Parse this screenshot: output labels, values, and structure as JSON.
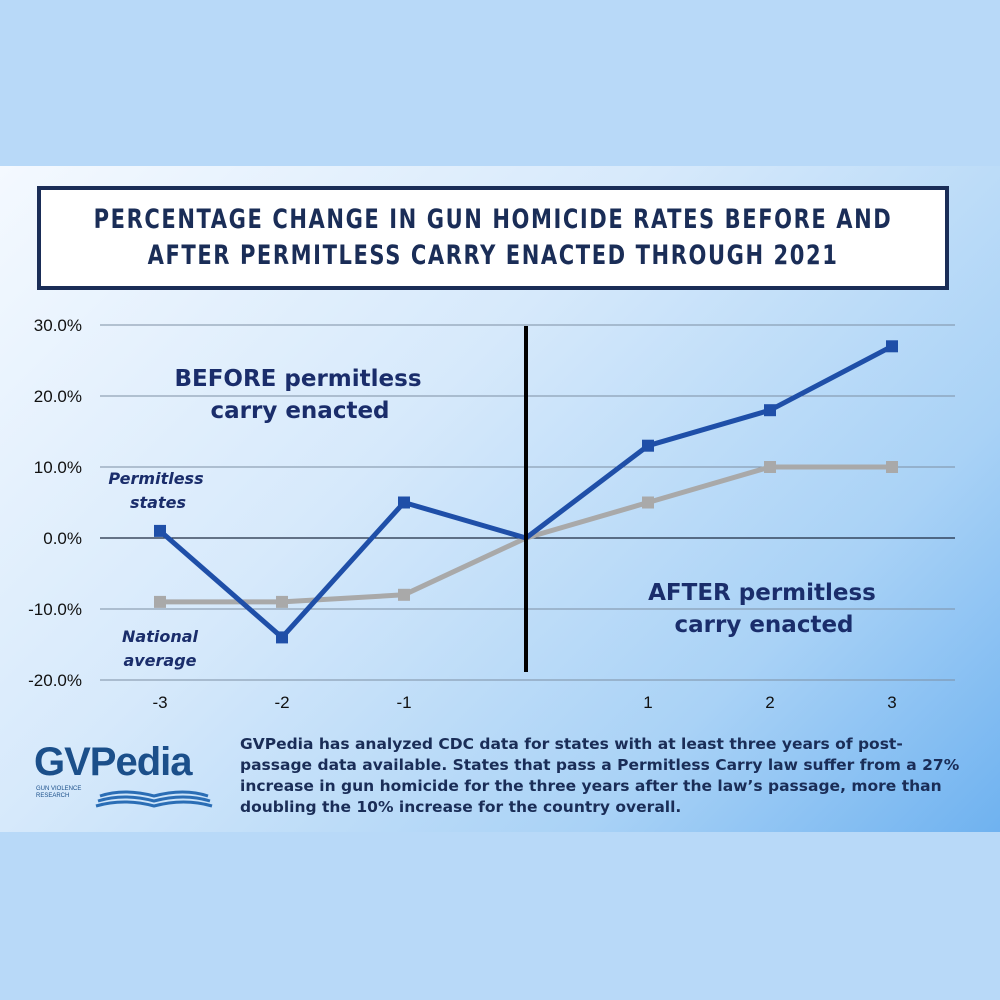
{
  "title_line1": "PERCENTAGE CHANGE IN GUN HOMICIDE RATES BEFORE AND",
  "title_line2": "AFTER PERMITLESS CARRY ENACTED THROUGH 2021",
  "annotations": {
    "before_line1": "BEFORE permitless",
    "before_line2": "carry enacted",
    "after_line1": "AFTER permitless",
    "after_line2": "carry enacted",
    "permitless_line1": "Permitless",
    "permitless_line2": "states",
    "national_line1": "National",
    "national_line2": "average"
  },
  "caption": "GVPedia has analyzed CDC data for states with at least three years of post-passage data available. States that pass a Permitless Carry law suffer from a 27% increase in gun homicide for the three years after the law’s passage, more than doubling the 10% increase for the country overall.",
  "logo": {
    "name": "GVPedia",
    "subtitle": "GUN VIOLENCE RESEARCH"
  },
  "colors": {
    "permitless": "#1f4fa8",
    "national": "#a9a9a9",
    "title_border": "#1a2d57",
    "divider": "#000000"
  },
  "chart_data": {
    "type": "line",
    "x": [
      -3,
      -2,
      -1,
      0,
      1,
      2,
      3
    ],
    "x_tick_labels": [
      "-3",
      "-2",
      "-1",
      "",
      "1",
      "2",
      "3"
    ],
    "y_ticks": [
      "30.0%",
      "20.0%",
      "10.0%",
      "0.0%",
      "-10.0%",
      "-20.0%"
    ],
    "y_tick_values": [
      30,
      20,
      10,
      0,
      -10,
      -20
    ],
    "ylim": [
      -20,
      30
    ],
    "grid": true,
    "divider_x": 0,
    "series": [
      {
        "name": "Permitless states",
        "values": [
          1,
          -14,
          5,
          0,
          13,
          18,
          27
        ],
        "color": "#1f4fa8",
        "marker": "square"
      },
      {
        "name": "National average",
        "values": [
          -9,
          -9,
          -8,
          0,
          5,
          10,
          10
        ],
        "color": "#a9a9a9",
        "marker": "square"
      }
    ]
  }
}
